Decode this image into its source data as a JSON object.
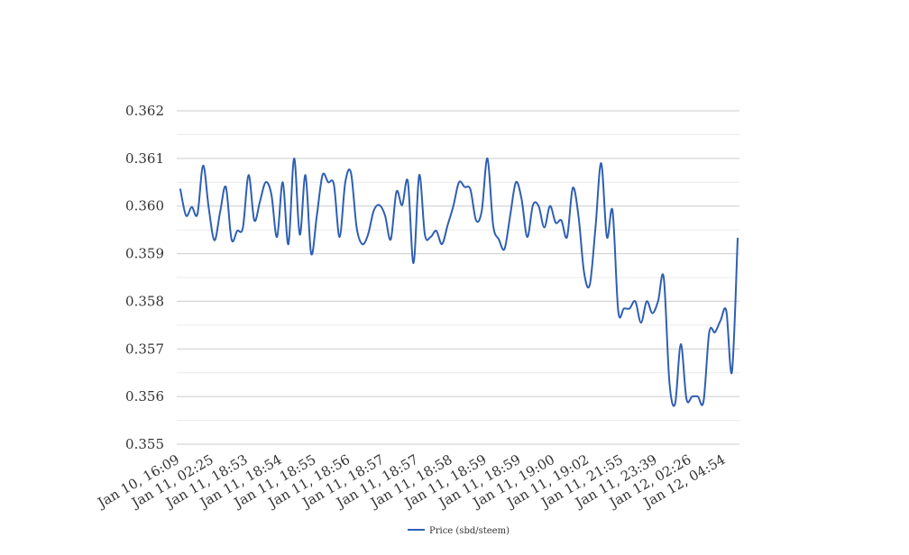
{
  "chart_data": {
    "type": "line",
    "title": "",
    "xlabel": "",
    "ylabel": "",
    "ylim": [
      0.355,
      0.362
    ],
    "y_ticks": [
      "0.355",
      "0.356",
      "0.357",
      "0.358",
      "0.359",
      "0.360",
      "0.361",
      "0.362"
    ],
    "y_major_step": 0.001,
    "y_minor_step": 0.0005,
    "grid": true,
    "legend_position": "bottom-center",
    "x_tick_labels": [
      "Jan 10, 16:09",
      "Jan 11, 02:25",
      "Jan 11, 18:53",
      "Jan 11, 18:54",
      "Jan 11, 18:55",
      "Jan 11, 18:56",
      "Jan 11, 18:57",
      "Jan 11, 18:57",
      "Jan 11, 18:58",
      "Jan 11, 18:59",
      "Jan 11, 18:59",
      "Jan 11, 19:00",
      "Jan 11, 19:02",
      "Jan 11, 21:55",
      "Jan 11, 23:39",
      "Jan 12, 02:26",
      "Jan 12, 04:54"
    ],
    "x_tick_every": 6,
    "series": [
      {
        "name": "Price (sbd/steem)",
        "color": "#2f5fb3",
        "values": [
          0.36035,
          0.3598,
          0.35998,
          0.35983,
          0.36085,
          0.35995,
          0.35928,
          0.35988,
          0.3604,
          0.3593,
          0.35948,
          0.35955,
          0.36065,
          0.3597,
          0.3601,
          0.3605,
          0.36025,
          0.35935,
          0.3605,
          0.3592,
          0.361,
          0.3594,
          0.36065,
          0.359,
          0.3598,
          0.36065,
          0.3605,
          0.36045,
          0.35935,
          0.3605,
          0.3607,
          0.35955,
          0.3592,
          0.3594,
          0.3599,
          0.36002,
          0.3598,
          0.3593,
          0.3603,
          0.36002,
          0.36052,
          0.3588,
          0.36065,
          0.3594,
          0.35935,
          0.35948,
          0.3592,
          0.3596,
          0.36,
          0.3605,
          0.3604,
          0.36035,
          0.3597,
          0.3599,
          0.361,
          0.3596,
          0.3593,
          0.3591,
          0.3598,
          0.3605,
          0.36015,
          0.35935,
          0.36002,
          0.36,
          0.35955,
          0.36,
          0.35965,
          0.3597,
          0.35935,
          0.36038,
          0.3598,
          0.3586,
          0.35835,
          0.35955,
          0.3609,
          0.35935,
          0.3599,
          0.3578,
          0.35785,
          0.35785,
          0.358,
          0.35755,
          0.358,
          0.35775,
          0.358,
          0.3585,
          0.3563,
          0.35585,
          0.3571,
          0.35595,
          0.356,
          0.356,
          0.3559,
          0.35735,
          0.35735,
          0.3576,
          0.3578,
          0.35652,
          0.35932
        ]
      }
    ]
  }
}
